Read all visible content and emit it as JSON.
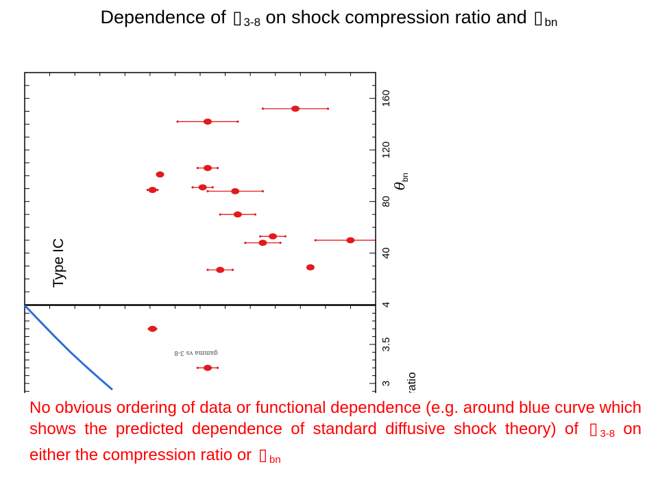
{
  "title": {
    "prefix": "Dependence of",
    "symbol_gamma": "▯",
    "sub_gamma": "3-8",
    "middle": "on shock compression ratio and",
    "symbol_theta": "▯",
    "sub_theta": "bn"
  },
  "chart_data": [
    {
      "type": "scatter",
      "panel": "top",
      "annotation": "Type IC",
      "ylabel_symbol": "θ",
      "ylabel_sub": "bn",
      "yticks": [
        "4",
        "40",
        "80",
        "120",
        "160"
      ],
      "ylim": [
        0,
        180
      ],
      "xlim": [
        0,
        14
      ],
      "color": "#e31a1c",
      "points": [
        {
          "x": 10.8,
          "y": 152,
          "xerr": 1.3
        },
        {
          "x": 7.3,
          "y": 142,
          "xerr": 1.2
        },
        {
          "x": 7.3,
          "y": 106,
          "xerr": 0.4
        },
        {
          "x": 5.4,
          "y": 101,
          "xerr": 0
        },
        {
          "x": 7.1,
          "y": 91,
          "xerr": 0.4
        },
        {
          "x": 5.1,
          "y": 89,
          "xerr": 0.2
        },
        {
          "x": 8.4,
          "y": 88,
          "xerr": 1.1
        },
        {
          "x": 8.5,
          "y": 70,
          "xerr": 0.7
        },
        {
          "x": 9.9,
          "y": 53,
          "xerr": 0.5
        },
        {
          "x": 13.0,
          "y": 50,
          "xerr": 1.4
        },
        {
          "x": 9.5,
          "y": 48,
          "xerr": 0.7
        },
        {
          "x": 11.4,
          "y": 29,
          "xerr": 0
        },
        {
          "x": 7.8,
          "y": 27,
          "xerr": 0.5
        }
      ]
    },
    {
      "type": "scatter",
      "panel": "bottom",
      "ylabel": "ratio",
      "yticks": [
        "3",
        "3.5",
        "4"
      ],
      "ylim": [
        2.9,
        4.0
      ],
      "xlim": [
        0,
        14
      ],
      "inner_text_mirrored": "gamma vs 3-8",
      "color": "#e31a1c",
      "points": [
        {
          "x": 5.1,
          "y": 3.7,
          "xerr": 0.15
        },
        {
          "x": 7.3,
          "y": 3.2,
          "xerr": 0.4
        }
      ],
      "curve_color": "#2a6fdb",
      "curve": [
        {
          "x": 0.0,
          "y": 4.0
        },
        {
          "x": 0.6,
          "y": 3.8
        },
        {
          "x": 1.2,
          "y": 3.6
        },
        {
          "x": 1.8,
          "y": 3.41
        },
        {
          "x": 2.4,
          "y": 3.23
        },
        {
          "x": 3.0,
          "y": 3.06
        },
        {
          "x": 3.5,
          "y": 2.92
        }
      ]
    }
  ],
  "caption": {
    "text1": "No obvious ordering of data or functional dependence (e.g. around blue curve which shows the predicted dependence of standard diffusive shock theory) of",
    "symbol_gamma": "▯",
    "sub_gamma": "3-8",
    "text2": "on either the compression ratio or",
    "symbol_theta": "▯",
    "sub_theta": "bn"
  }
}
